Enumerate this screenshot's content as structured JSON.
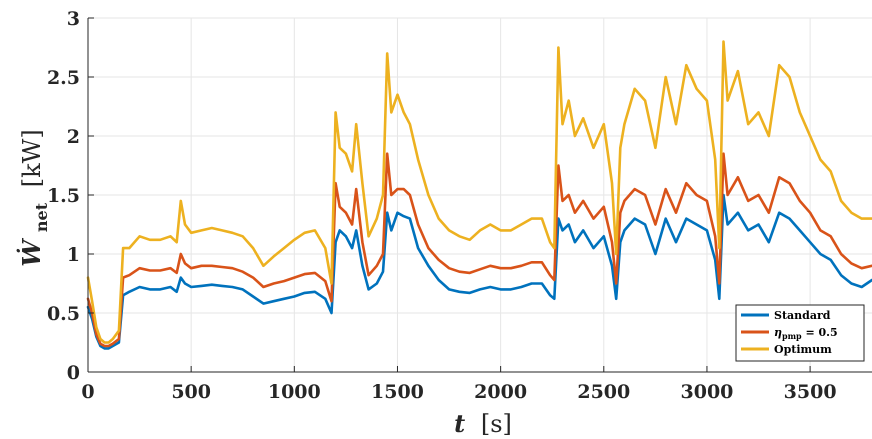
{
  "chart_data": {
    "type": "line",
    "xlabel_var": "t",
    "xlabel_unit": "[s]",
    "ylabel_var": "Ẇ",
    "ylabel_sub": "net",
    "ylabel_unit": "[kW]",
    "xlim": [
      0,
      3800
    ],
    "ylim": [
      0,
      3
    ],
    "xticks": [
      0,
      500,
      1000,
      1500,
      2000,
      2500,
      3000,
      3500
    ],
    "xtick_labels": [
      "0",
      "500",
      "1000",
      "1500",
      "2000",
      "2500",
      "3000",
      "3500"
    ],
    "yticks": [
      0,
      0.5,
      1,
      1.5,
      2,
      2.5,
      3
    ],
    "ytick_labels": [
      "0",
      "0.5",
      "1",
      "1.5",
      "2",
      "2.5",
      "3"
    ],
    "grid": true,
    "legend_position": "bottom-right",
    "series": [
      {
        "name": "Standard",
        "legend_main": "Standard",
        "legend_sub": "",
        "legend_suffix": "",
        "color": "#0072BD",
        "x": [
          0,
          20,
          40,
          60,
          80,
          100,
          120,
          150,
          170,
          200,
          250,
          300,
          350,
          400,
          430,
          450,
          470,
          500,
          550,
          600,
          650,
          700,
          750,
          800,
          850,
          900,
          950,
          1000,
          1050,
          1100,
          1150,
          1180,
          1200,
          1220,
          1250,
          1280,
          1300,
          1330,
          1360,
          1400,
          1430,
          1450,
          1470,
          1500,
          1530,
          1560,
          1600,
          1650,
          1700,
          1750,
          1800,
          1850,
          1900,
          1950,
          2000,
          2050,
          2100,
          2150,
          2200,
          2240,
          2260,
          2280,
          2300,
          2330,
          2360,
          2400,
          2450,
          2500,
          2540,
          2560,
          2580,
          2600,
          2650,
          2700,
          2750,
          2800,
          2850,
          2900,
          2950,
          3000,
          3040,
          3060,
          3080,
          3100,
          3150,
          3200,
          3250,
          3300,
          3350,
          3400,
          3450,
          3500,
          3550,
          3600,
          3650,
          3700,
          3750,
          3800
        ],
        "values": [
          0.55,
          0.45,
          0.3,
          0.22,
          0.2,
          0.2,
          0.22,
          0.25,
          0.65,
          0.68,
          0.72,
          0.7,
          0.7,
          0.72,
          0.68,
          0.8,
          0.75,
          0.72,
          0.73,
          0.74,
          0.73,
          0.72,
          0.7,
          0.64,
          0.58,
          0.6,
          0.62,
          0.64,
          0.67,
          0.68,
          0.62,
          0.5,
          1.1,
          1.2,
          1.15,
          1.05,
          1.2,
          0.9,
          0.7,
          0.75,
          0.85,
          1.35,
          1.2,
          1.35,
          1.32,
          1.3,
          1.05,
          0.9,
          0.78,
          0.7,
          0.68,
          0.67,
          0.7,
          0.72,
          0.7,
          0.7,
          0.72,
          0.75,
          0.75,
          0.65,
          0.62,
          1.3,
          1.2,
          1.25,
          1.1,
          1.2,
          1.05,
          1.15,
          0.9,
          0.62,
          1.1,
          1.2,
          1.3,
          1.25,
          1.0,
          1.3,
          1.1,
          1.3,
          1.25,
          1.2,
          0.95,
          0.62,
          1.5,
          1.25,
          1.35,
          1.2,
          1.25,
          1.1,
          1.35,
          1.3,
          1.2,
          1.1,
          1.0,
          0.95,
          0.82,
          0.75,
          0.72,
          0.78
        ]
      },
      {
        "name": "η_pmp = 0.5",
        "legend_main": "η",
        "legend_sub": "pmp",
        "legend_suffix": " = 0.5",
        "color": "#D95319",
        "x": [
          0,
          20,
          40,
          60,
          80,
          100,
          120,
          150,
          170,
          200,
          250,
          300,
          350,
          400,
          430,
          450,
          470,
          500,
          550,
          600,
          650,
          700,
          750,
          800,
          850,
          900,
          950,
          1000,
          1050,
          1100,
          1150,
          1180,
          1200,
          1220,
          1250,
          1280,
          1300,
          1330,
          1360,
          1400,
          1430,
          1450,
          1470,
          1500,
          1530,
          1560,
          1600,
          1650,
          1700,
          1750,
          1800,
          1850,
          1900,
          1950,
          2000,
          2050,
          2100,
          2150,
          2200,
          2240,
          2260,
          2280,
          2300,
          2330,
          2360,
          2400,
          2450,
          2500,
          2540,
          2560,
          2580,
          2600,
          2650,
          2700,
          2750,
          2800,
          2850,
          2900,
          2950,
          3000,
          3040,
          3060,
          3080,
          3100,
          3150,
          3200,
          3250,
          3300,
          3350,
          3400,
          3450,
          3500,
          3550,
          3600,
          3650,
          3700,
          3750,
          3800
        ],
        "values": [
          0.62,
          0.5,
          0.32,
          0.24,
          0.22,
          0.22,
          0.24,
          0.28,
          0.8,
          0.82,
          0.88,
          0.86,
          0.86,
          0.88,
          0.84,
          1.0,
          0.92,
          0.88,
          0.9,
          0.9,
          0.89,
          0.88,
          0.85,
          0.8,
          0.72,
          0.75,
          0.77,
          0.8,
          0.83,
          0.84,
          0.77,
          0.6,
          1.6,
          1.4,
          1.35,
          1.25,
          1.55,
          1.1,
          0.82,
          0.9,
          1.0,
          1.85,
          1.5,
          1.55,
          1.55,
          1.5,
          1.25,
          1.05,
          0.95,
          0.88,
          0.85,
          0.84,
          0.87,
          0.9,
          0.88,
          0.88,
          0.9,
          0.93,
          0.93,
          0.82,
          0.78,
          1.75,
          1.45,
          1.5,
          1.35,
          1.45,
          1.3,
          1.4,
          1.1,
          0.75,
          1.35,
          1.45,
          1.55,
          1.5,
          1.25,
          1.55,
          1.35,
          1.6,
          1.5,
          1.45,
          1.15,
          0.75,
          1.85,
          1.5,
          1.65,
          1.45,
          1.5,
          1.35,
          1.65,
          1.6,
          1.45,
          1.35,
          1.2,
          1.15,
          1.0,
          0.92,
          0.88,
          0.9
        ]
      },
      {
        "name": "Optimum",
        "legend_main": "Optimum",
        "legend_sub": "",
        "legend_suffix": "",
        "color": "#EDB120",
        "x": [
          0,
          20,
          40,
          60,
          80,
          100,
          120,
          150,
          170,
          200,
          250,
          300,
          350,
          400,
          430,
          450,
          470,
          500,
          550,
          600,
          650,
          700,
          750,
          800,
          850,
          900,
          950,
          1000,
          1050,
          1100,
          1150,
          1180,
          1200,
          1220,
          1250,
          1280,
          1300,
          1330,
          1360,
          1400,
          1430,
          1450,
          1470,
          1500,
          1530,
          1560,
          1600,
          1650,
          1700,
          1750,
          1800,
          1850,
          1900,
          1950,
          2000,
          2050,
          2100,
          2150,
          2200,
          2240,
          2260,
          2280,
          2300,
          2330,
          2360,
          2400,
          2450,
          2500,
          2540,
          2560,
          2580,
          2600,
          2650,
          2700,
          2750,
          2800,
          2850,
          2900,
          2950,
          3000,
          3040,
          3060,
          3080,
          3100,
          3150,
          3200,
          3250,
          3300,
          3350,
          3400,
          3450,
          3500,
          3550,
          3600,
          3650,
          3700,
          3750,
          3800
        ],
        "values": [
          0.8,
          0.6,
          0.38,
          0.28,
          0.25,
          0.25,
          0.28,
          0.35,
          1.05,
          1.05,
          1.15,
          1.12,
          1.12,
          1.15,
          1.1,
          1.45,
          1.25,
          1.18,
          1.2,
          1.22,
          1.2,
          1.18,
          1.15,
          1.05,
          0.9,
          0.98,
          1.05,
          1.12,
          1.18,
          1.2,
          1.05,
          0.75,
          2.2,
          1.9,
          1.85,
          1.7,
          2.1,
          1.6,
          1.15,
          1.3,
          1.5,
          2.7,
          2.2,
          2.35,
          2.2,
          2.1,
          1.8,
          1.5,
          1.3,
          1.2,
          1.15,
          1.12,
          1.2,
          1.25,
          1.2,
          1.2,
          1.25,
          1.3,
          1.3,
          1.1,
          1.05,
          2.75,
          2.1,
          2.3,
          2.0,
          2.15,
          1.9,
          2.1,
          1.6,
          1.0,
          1.9,
          2.1,
          2.4,
          2.3,
          1.9,
          2.5,
          2.1,
          2.6,
          2.4,
          2.3,
          1.8,
          1.05,
          2.8,
          2.3,
          2.55,
          2.1,
          2.2,
          2.0,
          2.6,
          2.5,
          2.2,
          2.0,
          1.8,
          1.7,
          1.45,
          1.35,
          1.3,
          1.3
        ]
      }
    ]
  }
}
